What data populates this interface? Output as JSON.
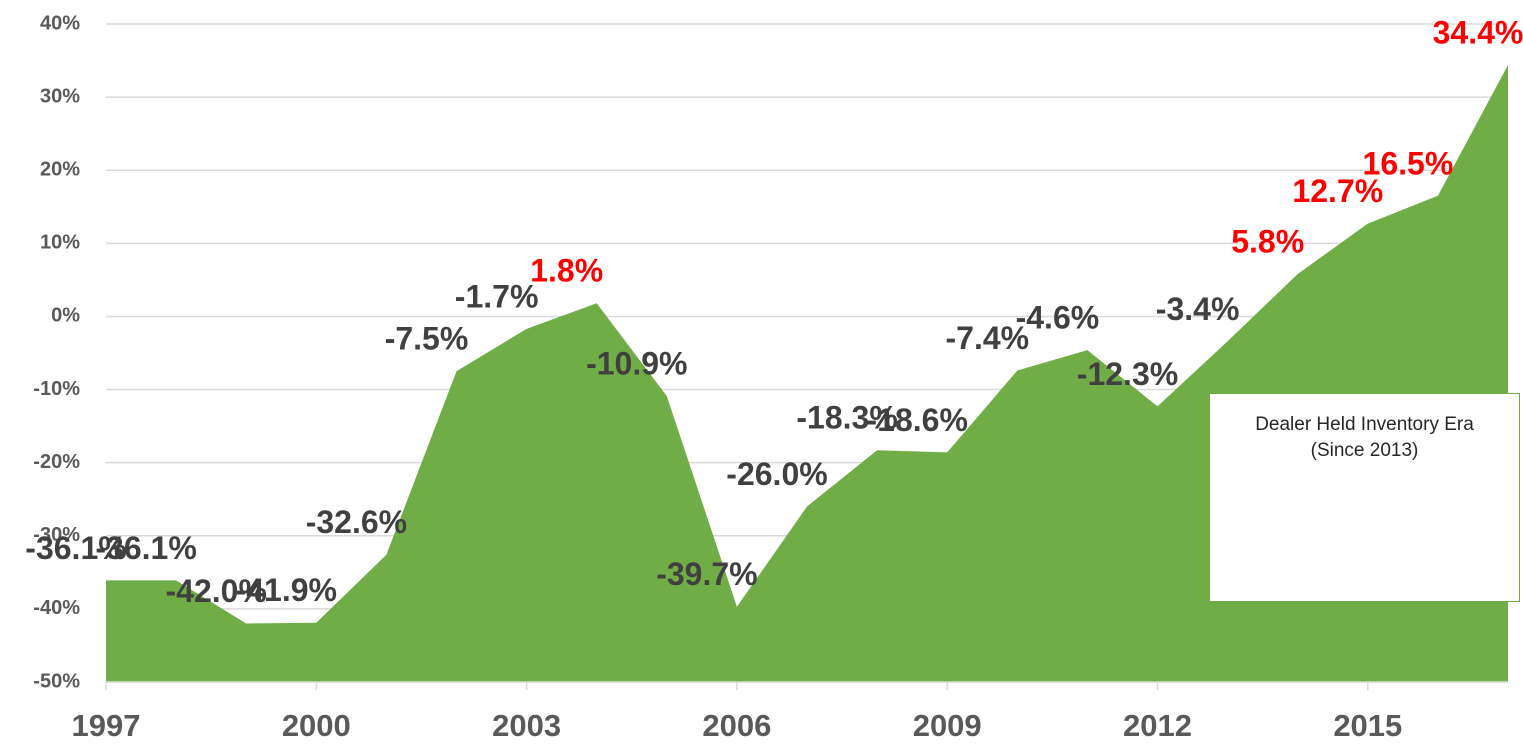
{
  "chart_data": {
    "type": "area",
    "x": [
      1997,
      1998,
      1999,
      2000,
      2001,
      2002,
      2003,
      2004,
      2005,
      2006,
      2007,
      2008,
      2009,
      2010,
      2011,
      2012,
      2013,
      2014,
      2015,
      2016,
      2017
    ],
    "values": [
      -36.1,
      -36.1,
      -42.0,
      -41.9,
      -32.6,
      -7.5,
      -1.7,
      1.8,
      -10.9,
      -39.7,
      -26.0,
      -18.3,
      -18.6,
      -7.4,
      -4.6,
      -12.3,
      -3.4,
      5.8,
      12.7,
      16.5,
      34.4
    ],
    "value_labels": [
      "-36.1%",
      "-36.1%",
      "-42.0%",
      "-41.9%",
      "-32.6%",
      "-7.5%",
      "-1.7%",
      "1.8%",
      "-10.9%",
      "-39.7%",
      "-26.0%",
      "-18.3%",
      "-18.6%",
      "-7.4%",
      "-4.6%",
      "-12.3%",
      "-3.4%",
      "5.8%",
      "12.7%",
      "16.5%",
      "34.4%"
    ],
    "color": "#70ad47",
    "label_color": "#404040",
    "positive_label_color": "#ff0000",
    "xlim": [
      1997,
      2017
    ],
    "xticks": [
      1997,
      2000,
      2003,
      2006,
      2009,
      2012,
      2015
    ],
    "ylim": [
      -50,
      40
    ],
    "yticks": [
      {
        "value": -50,
        "label": "-50%"
      },
      {
        "value": -40,
        "label": "-40%"
      },
      {
        "value": -30,
        "label": "-30%"
      },
      {
        "value": -20,
        "label": "-20%"
      },
      {
        "value": -10,
        "label": "-10%"
      },
      {
        "value": 0,
        "label": "0%"
      },
      {
        "value": 10,
        "label": "10%"
      },
      {
        "value": 20,
        "label": "20%"
      },
      {
        "value": 30,
        "label": "30%"
      },
      {
        "value": 40,
        "label": "40%"
      }
    ],
    "grid": true,
    "annotation": "Dealer Held Inventory Era (Since 2013)"
  }
}
